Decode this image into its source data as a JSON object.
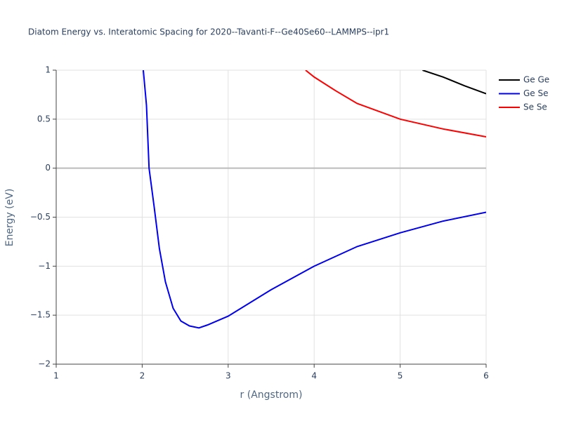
{
  "chart_data": {
    "type": "line",
    "title": "Diatom Energy vs. Interatomic Spacing for 2020--Tavanti-F--Ge40Se60--LAMMPS--ipr1",
    "x_label": "r (Angstrom)",
    "y_label": "Energy (eV)",
    "xlim": [
      1,
      6
    ],
    "ylim": [
      -2,
      1
    ],
    "xticks": [
      1,
      2,
      3,
      4,
      5,
      6
    ],
    "yticks": [
      {
        "value": -2,
        "label": "−2"
      },
      {
        "value": -1.5,
        "label": "−1.5"
      },
      {
        "value": -1,
        "label": "−1"
      },
      {
        "value": -0.5,
        "label": "−0.5"
      },
      0,
      0.5,
      1
    ],
    "grid": true,
    "legend": "right",
    "series": [
      {
        "name": "Ge Ge",
        "color": "#000000",
        "x": [
          5.26,
          5.5,
          5.75,
          6.0
        ],
        "values": [
          1.0,
          0.93,
          0.84,
          0.76
        ]
      },
      {
        "name": "Ge Se",
        "color": "#0000ee",
        "x": [
          2.013,
          2.05,
          2.08,
          2.14,
          2.2,
          2.27,
          2.36,
          2.45,
          2.55,
          2.66,
          2.76,
          3.0,
          3.5,
          4.0,
          4.5,
          5.0,
          5.5,
          6.0
        ],
        "values": [
          1.0,
          0.64,
          0.0,
          -0.4,
          -0.82,
          -1.16,
          -1.43,
          -1.56,
          -1.61,
          -1.63,
          -1.6,
          -1.51,
          -1.24,
          -1.0,
          -0.8,
          -0.66,
          -0.54,
          -0.45
        ]
      },
      {
        "name": "Se Se",
        "color": "#ff0000",
        "x": [
          3.9,
          4.0,
          4.25,
          4.5,
          5.0,
          5.5,
          6.0
        ],
        "values": [
          1.0,
          0.93,
          0.79,
          0.66,
          0.5,
          0.4,
          0.32
        ]
      }
    ]
  }
}
